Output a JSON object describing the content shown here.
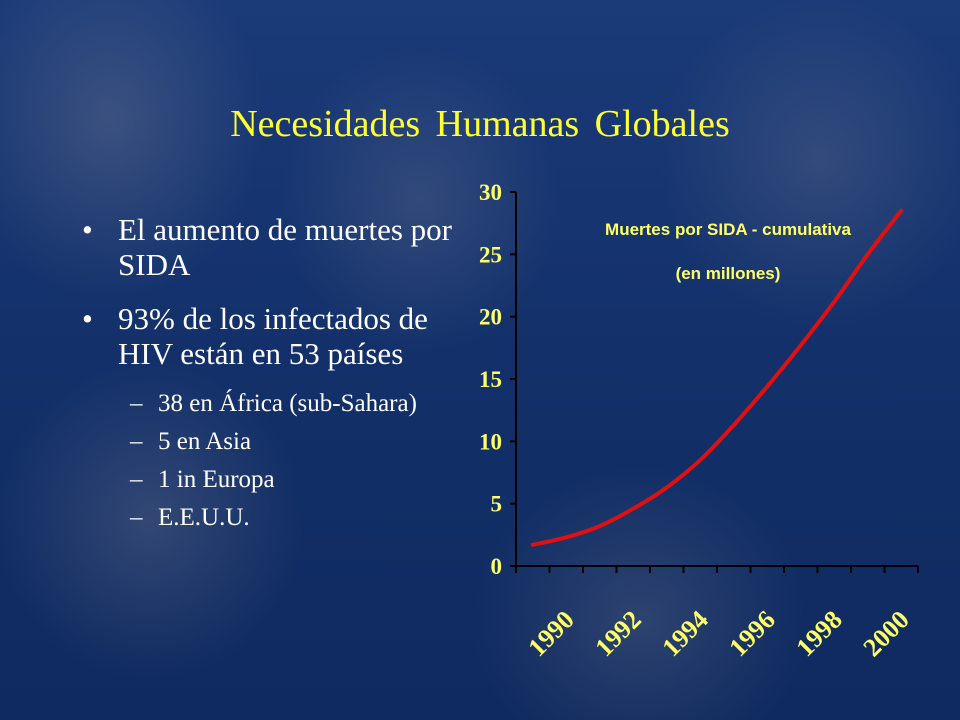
{
  "slide": {
    "title": "Necesidades Humanas Globales",
    "bullets": [
      {
        "marker": "•",
        "text": "El aumento de muertes por SIDA"
      },
      {
        "marker": "•",
        "text": "93% de los infectados de HIV están en 53 países"
      }
    ],
    "subbullets": [
      {
        "marker": "–",
        "text": "38 en África (sub-Sahara)"
      },
      {
        "marker": "–",
        "text": "5 en Asia"
      },
      {
        "marker": "–",
        "text": "1 in Europa"
      },
      {
        "marker": "–",
        "text": "E.E.U.U."
      }
    ]
  },
  "chart_data": {
    "type": "line",
    "title": "Muertes por SIDA - cumulativa",
    "subtitle": "(en millones)",
    "x": [
      1990,
      1991,
      1992,
      1993,
      1994,
      1995,
      1996,
      1997,
      1998,
      1999,
      2000,
      2001
    ],
    "x_tick_labels": [
      "1990",
      "1992",
      "1994",
      "1996",
      "1998",
      "2000"
    ],
    "y_tick_labels": [
      "0",
      "5",
      "10",
      "15",
      "20",
      "25",
      "30"
    ],
    "ylim": [
      0,
      30
    ],
    "xlim": [
      1989.5,
      2001.5
    ],
    "series": [
      {
        "values": [
          1.7,
          2.3,
          3.2,
          4.6,
          6.3,
          8.5,
          11.3,
          14.4,
          17.7,
          21.2,
          25.0,
          28.5
        ]
      }
    ],
    "line_color": "#e01010",
    "axis_color": "#000000",
    "text_color": "#ffff66",
    "grid": false
  }
}
